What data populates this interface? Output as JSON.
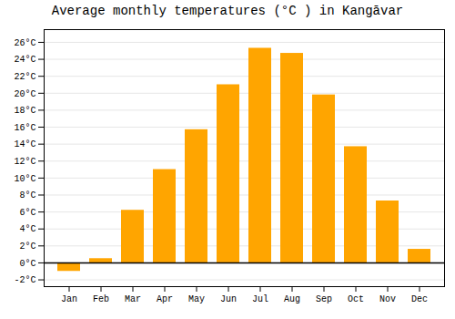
{
  "chart_data": {
    "type": "bar",
    "title": "Average monthly temperatures (°C ) in Kangāvar",
    "categories": [
      "Jan",
      "Feb",
      "Mar",
      "Apr",
      "May",
      "Jun",
      "Jul",
      "Aug",
      "Sep",
      "Oct",
      "Nov",
      "Dec"
    ],
    "values": [
      -1.0,
      0.5,
      6.2,
      11.0,
      15.7,
      21.0,
      25.3,
      24.7,
      19.8,
      13.7,
      7.3,
      1.6
    ],
    "color": "#FFA500",
    "ylim": [
      -2.8,
      27.5
    ],
    "yticks": [
      {
        "value": -2,
        "label": "-2°C"
      },
      {
        "value": 0,
        "label": "0°C"
      },
      {
        "value": 2,
        "label": "2°C"
      },
      {
        "value": 4,
        "label": "4°C"
      },
      {
        "value": 6,
        "label": "6°C"
      },
      {
        "value": 8,
        "label": "8°C"
      },
      {
        "value": 10,
        "label": "10°C"
      },
      {
        "value": 12,
        "label": "12°C"
      },
      {
        "value": 14,
        "label": "14°C"
      },
      {
        "value": 16,
        "label": "16°C"
      },
      {
        "value": 18,
        "label": "18°C"
      },
      {
        "value": 20,
        "label": "20°C"
      },
      {
        "value": 22,
        "label": "22°C"
      },
      {
        "value": 24,
        "label": "24°C"
      },
      {
        "value": 26,
        "label": "26°C"
      }
    ],
    "grid": true
  }
}
